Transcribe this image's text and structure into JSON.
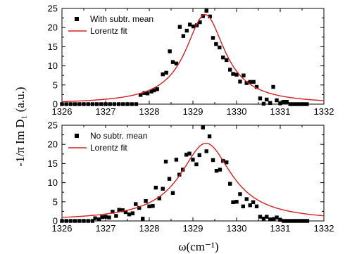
{
  "colors": {
    "points": "#000000",
    "fit": "#d42020",
    "axes": "#000000"
  },
  "ylabel": "-1/π Im D₁ (a.u.)",
  "xlabel": "ω(cm⁻¹)",
  "chart_data": [
    {
      "type": "scatter",
      "xlim": [
        1326,
        1332
      ],
      "ylim": [
        0,
        25
      ],
      "xticks": [
        1326,
        1327,
        1328,
        1329,
        1330,
        1331,
        1332
      ],
      "yticks": [
        0,
        5,
        10,
        15,
        20,
        25
      ],
      "grid": false,
      "legend_position": "top-left",
      "legend": [
        "With subtr. mean",
        "Lorentz fit"
      ],
      "series": [
        {
          "name": "With subtr. mean",
          "kind": "points",
          "x": [
            1326.0,
            1326.1,
            1326.2,
            1326.3,
            1326.4,
            1326.5,
            1326.6,
            1326.7,
            1326.8,
            1326.9,
            1327.0,
            1327.1,
            1327.2,
            1327.3,
            1327.4,
            1327.5,
            1327.6,
            1327.7,
            1327.8,
            1327.89,
            1327.96,
            1328.05,
            1328.11,
            1328.18,
            1328.31,
            1328.39,
            1328.47,
            1328.54,
            1328.62,
            1328.7,
            1328.78,
            1328.86,
            1328.93,
            1329.01,
            1329.09,
            1329.16,
            1329.23,
            1329.31,
            1329.39,
            1329.46,
            1329.53,
            1329.61,
            1329.69,
            1329.77,
            1329.85,
            1329.92,
            1330.0,
            1330.08,
            1330.16,
            1330.23,
            1330.31,
            1330.39,
            1330.46,
            1330.54,
            1330.62,
            1330.69,
            1330.77,
            1330.84,
            1330.92,
            1331.0,
            1331.07,
            1331.15,
            1331.23,
            1331.3,
            1331.38,
            1331.46,
            1331.53,
            1331.61
          ],
          "y": [
            0,
            0,
            0,
            0,
            0,
            0,
            0,
            0,
            0,
            0,
            0,
            0,
            0,
            0,
            0,
            0,
            0,
            0,
            2.4,
            2.9,
            2.8,
            3.3,
            3.6,
            3.9,
            7.8,
            8.2,
            13.8,
            11.0,
            10.6,
            20.2,
            17.8,
            19.2,
            20.8,
            20.3,
            20.6,
            21.4,
            23.0,
            24.4,
            22.9,
            17.3,
            15.7,
            14.8,
            12.2,
            11.5,
            9.0,
            7.9,
            7.7,
            5.9,
            7.5,
            5.5,
            5.8,
            5.8,
            4.5,
            1.5,
            0.1,
            1.2,
            0.3,
            4.5,
            1.0,
            0.2,
            0.6,
            0.6,
            0,
            0,
            0,
            0,
            0,
            0
          ]
        },
        {
          "name": "Lorentz fit",
          "kind": "line",
          "model": "lorentzian",
          "center": 1329.28,
          "amplitude": 23.4,
          "hwhm": 0.55,
          "baseline": 0.0
        }
      ]
    },
    {
      "type": "scatter",
      "xlim": [
        1326,
        1332
      ],
      "ylim": [
        0,
        25
      ],
      "xticks": [
        1326,
        1327,
        1328,
        1329,
        1330,
        1331,
        1332
      ],
      "yticks": [
        0,
        5,
        10,
        15,
        20,
        25
      ],
      "grid": false,
      "legend_position": "top-left",
      "legend": [
        "No subtr. mean",
        "Lorentz fit"
      ],
      "series": [
        {
          "name": "No subtr. mean",
          "kind": "points",
          "x": [
            1326.0,
            1326.1,
            1326.2,
            1326.3,
            1326.4,
            1326.5,
            1326.6,
            1326.7,
            1326.76,
            1326.85,
            1326.92,
            1327.0,
            1327.08,
            1327.16,
            1327.24,
            1327.31,
            1327.39,
            1327.46,
            1327.54,
            1327.62,
            1327.69,
            1327.77,
            1327.85,
            1327.92,
            1328.0,
            1328.08,
            1328.15,
            1328.23,
            1328.31,
            1328.38,
            1328.46,
            1328.54,
            1328.62,
            1328.69,
            1328.77,
            1328.85,
            1328.92,
            1329.0,
            1329.08,
            1329.15,
            1329.23,
            1329.31,
            1329.38,
            1329.46,
            1329.54,
            1329.62,
            1329.69,
            1329.77,
            1329.85,
            1329.92,
            1330.0,
            1330.08,
            1330.15,
            1330.23,
            1330.31,
            1330.38,
            1330.46,
            1330.54,
            1330.62,
            1330.69,
            1330.77,
            1330.85,
            1330.92,
            1331.0,
            1331.08,
            1331.15,
            1331.23,
            1331.31,
            1331.38,
            1331.46,
            1331.54,
            1331.62
          ],
          "y": [
            0,
            0,
            0,
            0,
            0,
            0,
            0,
            0,
            0.7,
            0.4,
            1.0,
            1.1,
            0.9,
            2.4,
            1.3,
            2.9,
            2.8,
            2.3,
            1.7,
            2.0,
            4.4,
            3.4,
            0.6,
            5.2,
            3.8,
            3.9,
            8.7,
            5.9,
            8.4,
            15.5,
            11.0,
            7.3,
            16.0,
            12.1,
            13.4,
            17.3,
            17.6,
            16.0,
            14.8,
            17.2,
            24.4,
            18.2,
            22.1,
            15.9,
            13.1,
            13.4,
            15.7,
            15.3,
            9.7,
            4.9,
            5.0,
            7.0,
            3.8,
            5.7,
            4.1,
            4.9,
            3.8,
            1.1,
            0.6,
            1.1,
            0.4,
            0.5,
            0.9,
            0.3,
            0.0,
            0,
            0,
            0,
            0,
            0,
            0,
            0
          ]
        },
        {
          "name": "Lorentz fit",
          "kind": "line",
          "model": "lorentzian",
          "center": 1329.3,
          "amplitude": 20.3,
          "hwhm": 0.72,
          "baseline": 0.0
        }
      ]
    }
  ]
}
